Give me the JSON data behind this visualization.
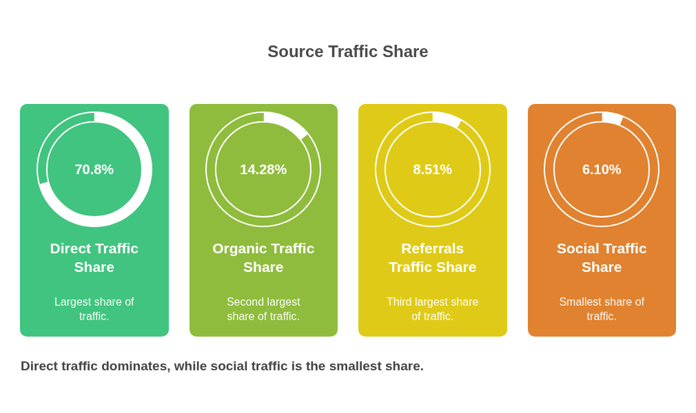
{
  "chart_data": {
    "type": "other",
    "title": "Source Traffic Share",
    "categories": [
      "Direct Traffic Share",
      "Organic Traffic Share",
      "Referrals Traffic Share",
      "Social Traffic Share"
    ],
    "values": [
      70.8,
      14.28,
      8.51,
      6.1
    ],
    "value_labels": [
      "70.8%",
      "14.28%",
      "8.51%",
      "6.10%"
    ],
    "colors": [
      "#40c47f",
      "#8fbc3c",
      "#dfcb17",
      "#e0822f"
    ],
    "annotations": [
      "Largest share of traffic.",
      "Second largest share of traffic.",
      "Third largest share of traffic.",
      "Smallest share of traffic.",
      "Direct traffic dominates, while social traffic is the smallest share."
    ]
  }
}
